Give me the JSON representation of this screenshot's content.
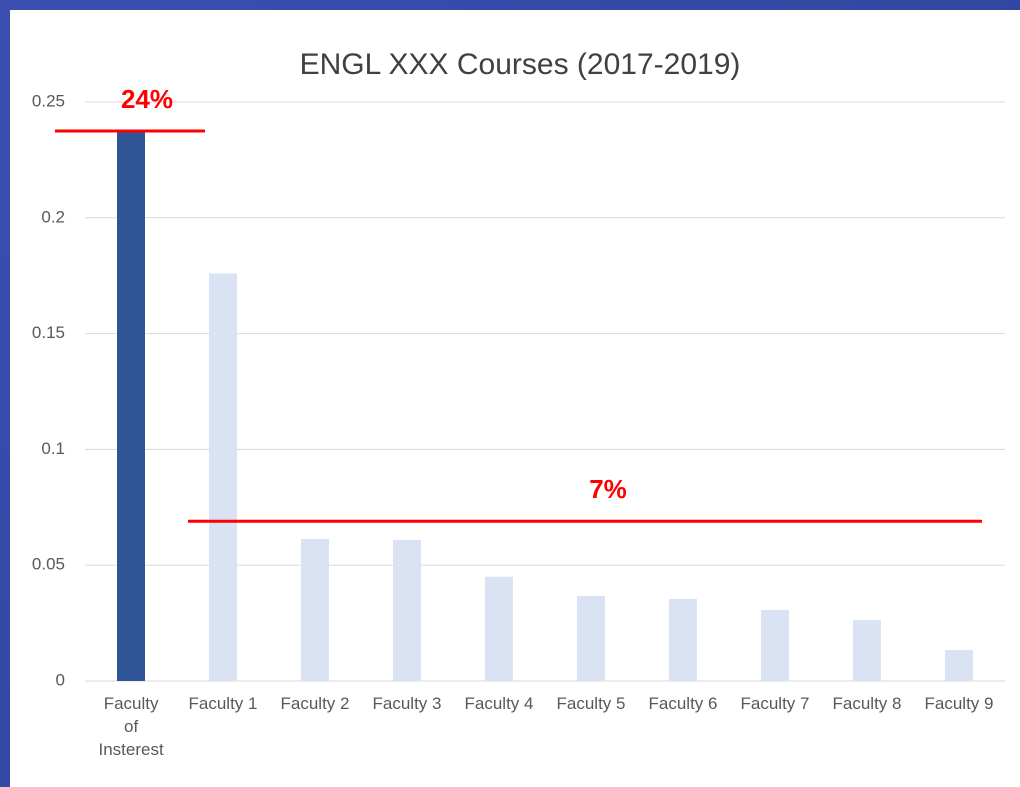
{
  "chart_data": {
    "type": "bar",
    "title": "ENGL XXX Courses (2017-2019)",
    "categories": [
      "Faculty of Insterest",
      "Faculty 1",
      "Faculty 2",
      "Faculty 3",
      "Faculty 4",
      "Faculty 5",
      "Faculty 6",
      "Faculty 7",
      "Faculty 8",
      "Faculty 9"
    ],
    "values": [
      0.237,
      0.176,
      0.0613,
      0.0609,
      0.045,
      0.0367,
      0.0354,
      0.0307,
      0.0263,
      0.0134
    ],
    "colors": [
      "#2f5597",
      "#dae3f3",
      "#dae3f3",
      "#dae3f3",
      "#dae3f3",
      "#dae3f3",
      "#dae3f3",
      "#dae3f3",
      "#dae3f3",
      "#dae3f3"
    ],
    "ylim": [
      0,
      0.25
    ],
    "yticks": [
      0,
      0.05,
      0.1,
      0.15,
      0.2,
      0.25
    ],
    "grid": true,
    "annotations": [
      {
        "label": "24%",
        "value": 0.2375,
        "color": "#ff0000"
      },
      {
        "label": "7%",
        "value": 0.069,
        "color": "#ff0000"
      }
    ]
  }
}
